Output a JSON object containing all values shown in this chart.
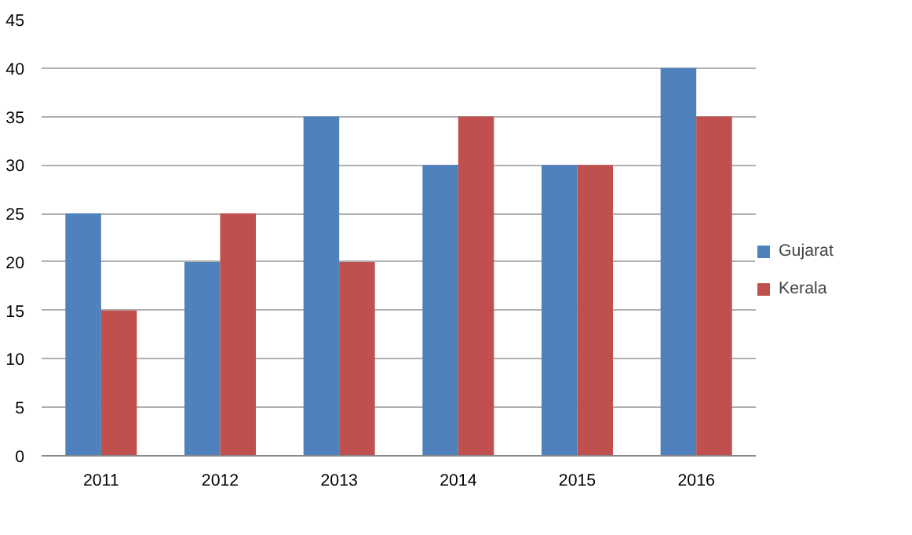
{
  "chart_data": {
    "type": "bar",
    "categories": [
      "2011",
      "2012",
      "2013",
      "2014",
      "2015",
      "2016"
    ],
    "series": [
      {
        "name": "Gujarat",
        "color": "#4f81bd",
        "values": [
          25,
          20,
          35,
          30,
          30,
          40
        ]
      },
      {
        "name": "Kerala",
        "color": "#c0504d",
        "values": [
          15,
          25,
          20,
          35,
          30,
          35
        ]
      }
    ],
    "ylim": [
      0,
      45
    ],
    "yticks": [
      0,
      5,
      10,
      15,
      20,
      25,
      30,
      35,
      40,
      45
    ],
    "grid": "y",
    "legend": "right"
  }
}
